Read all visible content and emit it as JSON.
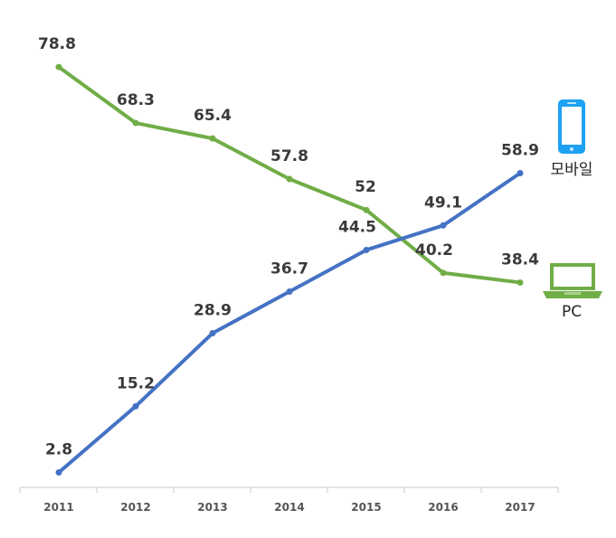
{
  "chart_data": {
    "type": "line",
    "categories": [
      "2011",
      "2012",
      "2013",
      "2014",
      "2015",
      "2016",
      "2017"
    ],
    "series": [
      {
        "name": "PC",
        "color": "#70ad47",
        "values": [
          78.8,
          68.3,
          65.4,
          57.8,
          52,
          40.2,
          38.4
        ],
        "labels": [
          "78.8",
          "68.3",
          "65.4",
          "57.8",
          "52",
          "40.2",
          "38.4"
        ]
      },
      {
        "name": "모바일",
        "color": "#4472c4",
        "values": [
          2.8,
          15.2,
          28.9,
          36.7,
          44.5,
          49.1,
          58.9
        ],
        "labels": [
          "2.8",
          "15.2",
          "28.9",
          "36.7",
          "44.5",
          "49.1",
          "58.9"
        ]
      }
    ],
    "ylim": [
      0,
      85
    ],
    "grid": false,
    "legend": "right",
    "legend_icons": {
      "모바일": "smartphone-icon",
      "PC": "laptop-icon"
    }
  }
}
